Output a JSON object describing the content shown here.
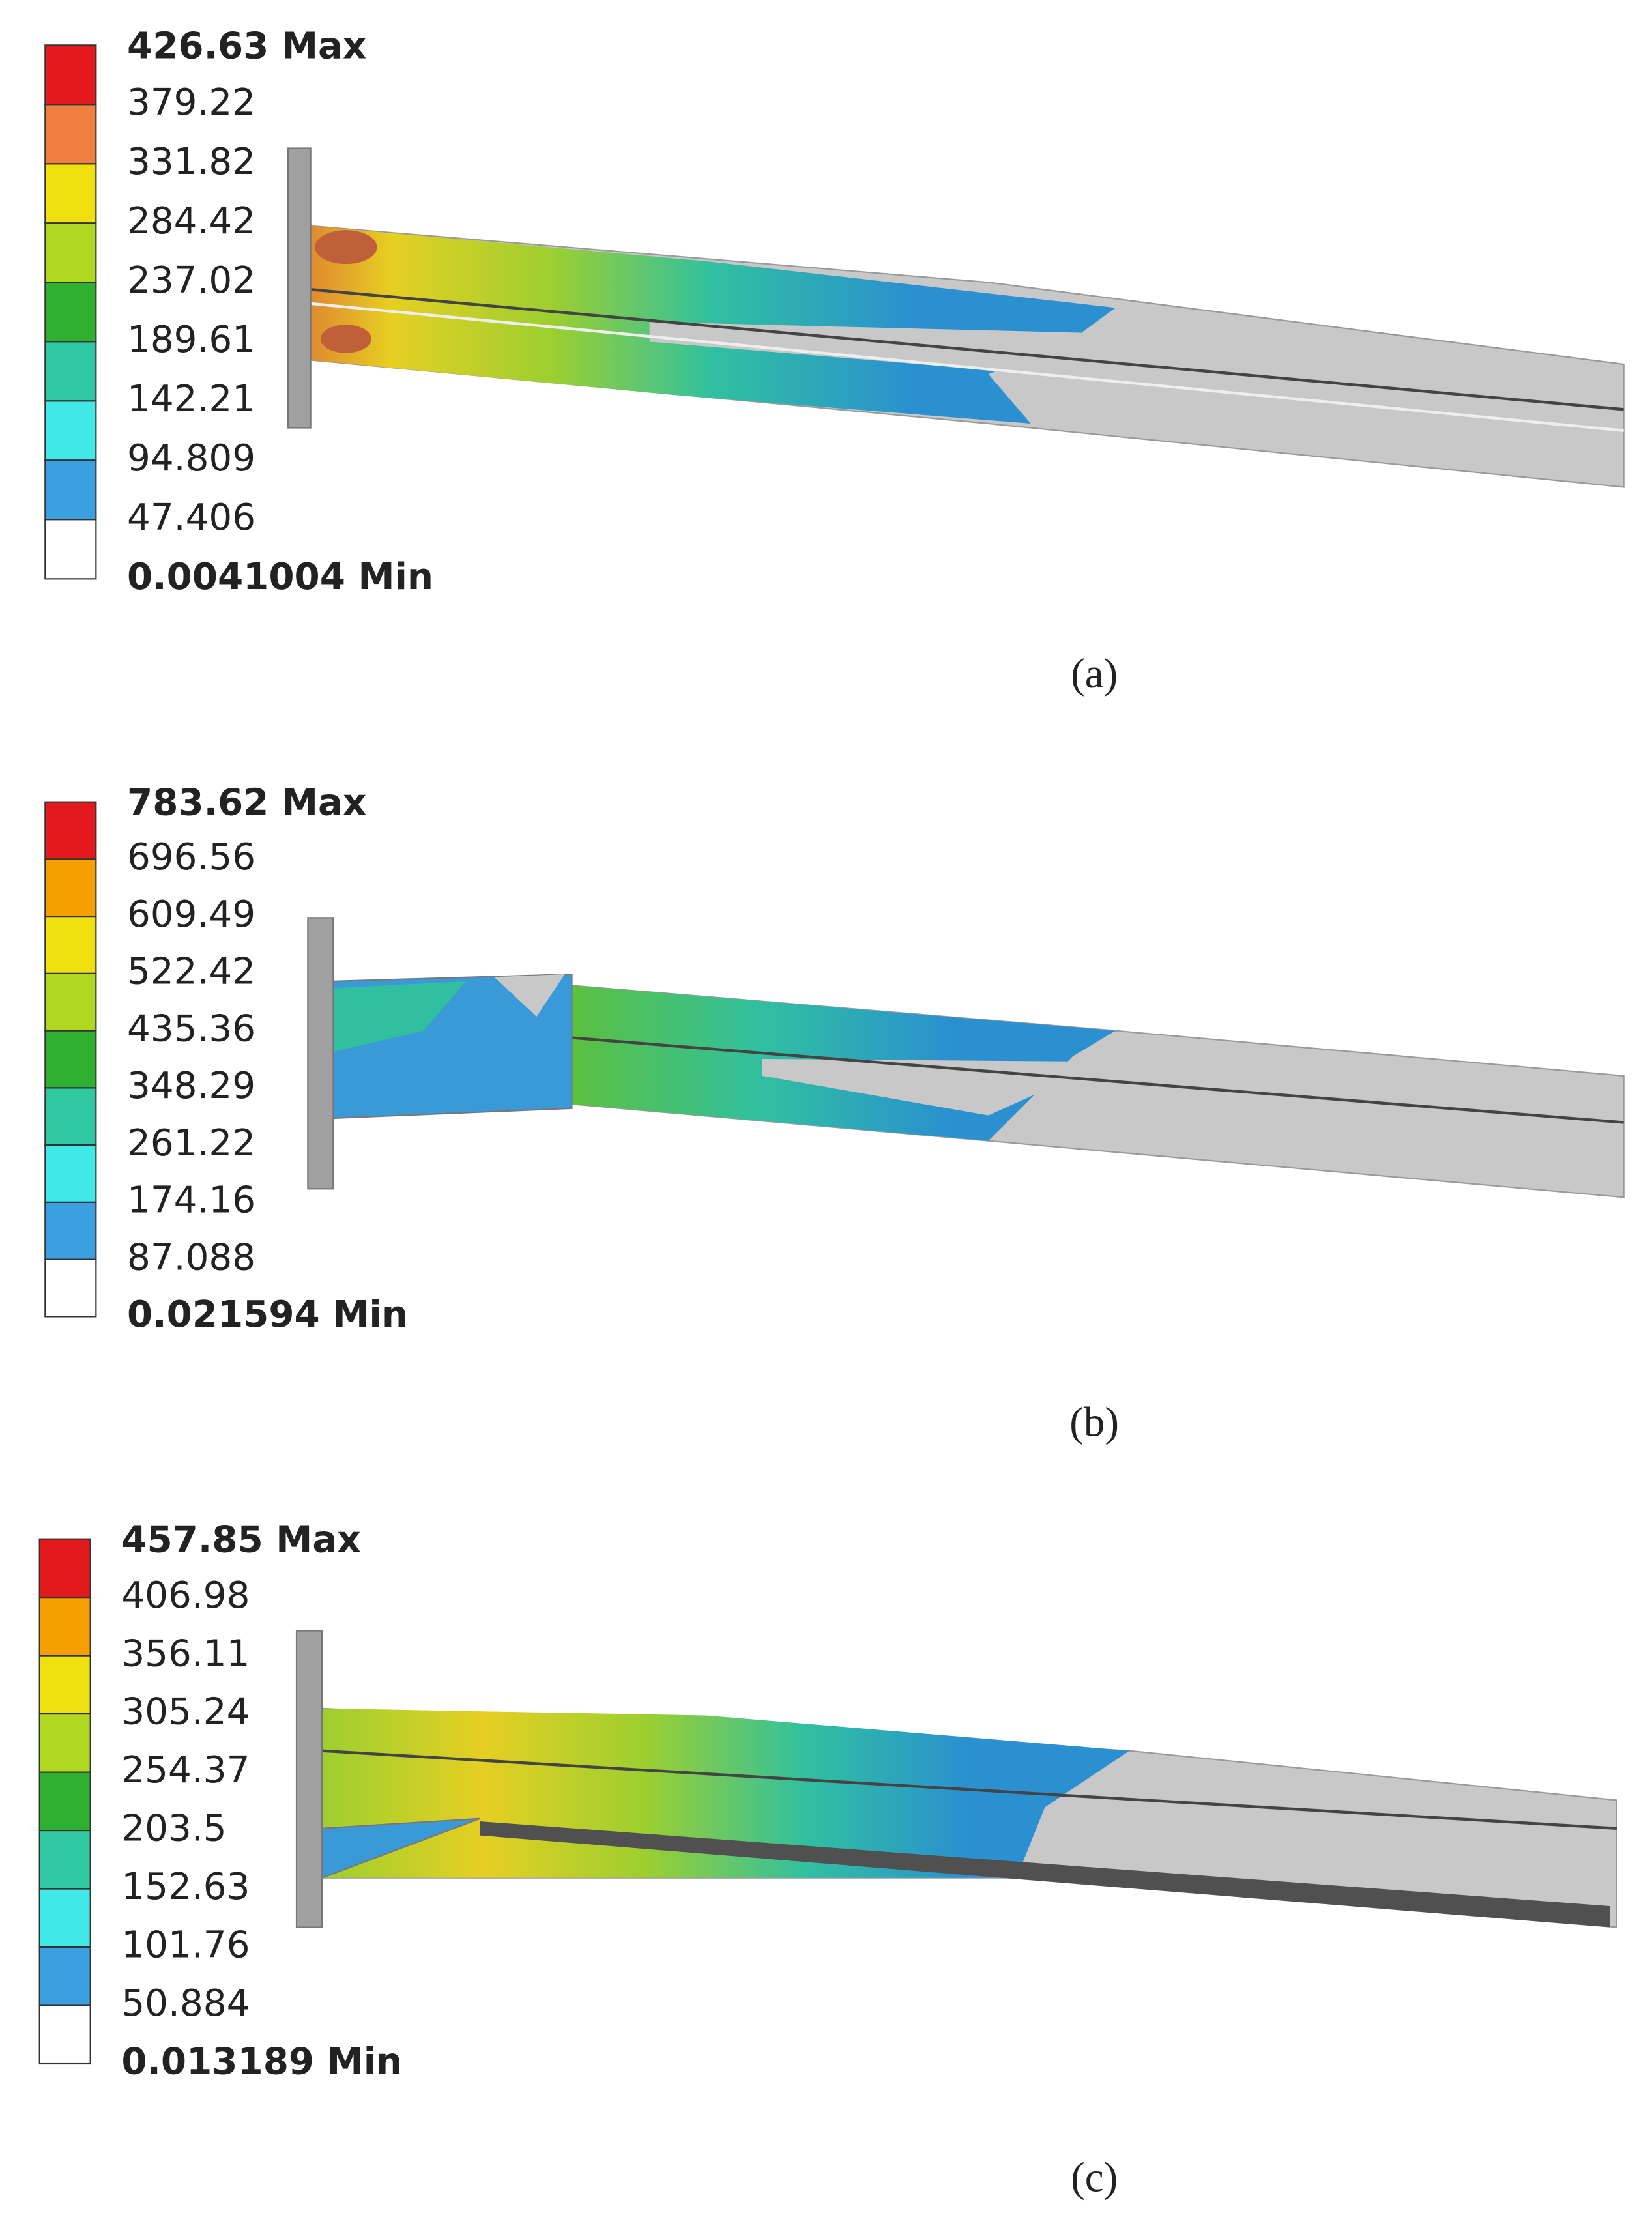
{
  "panels": [
    {
      "legend": [
        "426.63 Max",
        "379.22",
        "331.82",
        "284.42",
        "237.02",
        "189.61",
        "142.21",
        "94.809",
        "47.406",
        "0.0041004 Min"
      ],
      "caption": "(a)"
    },
    {
      "legend": [
        "783.62 Max",
        "696.56",
        "609.49",
        "522.42",
        "435.36",
        "348.29",
        "261.22",
        "174.16",
        "87.088",
        "0.021594 Min"
      ],
      "caption": "(b)"
    },
    {
      "legend": [
        "457.85 Max",
        "406.98",
        "356.11",
        "305.24",
        "254.37",
        "203.5",
        "152.63",
        "101.76",
        "50.884",
        "0.013189 Min"
      ],
      "caption": "(c)"
    }
  ]
}
